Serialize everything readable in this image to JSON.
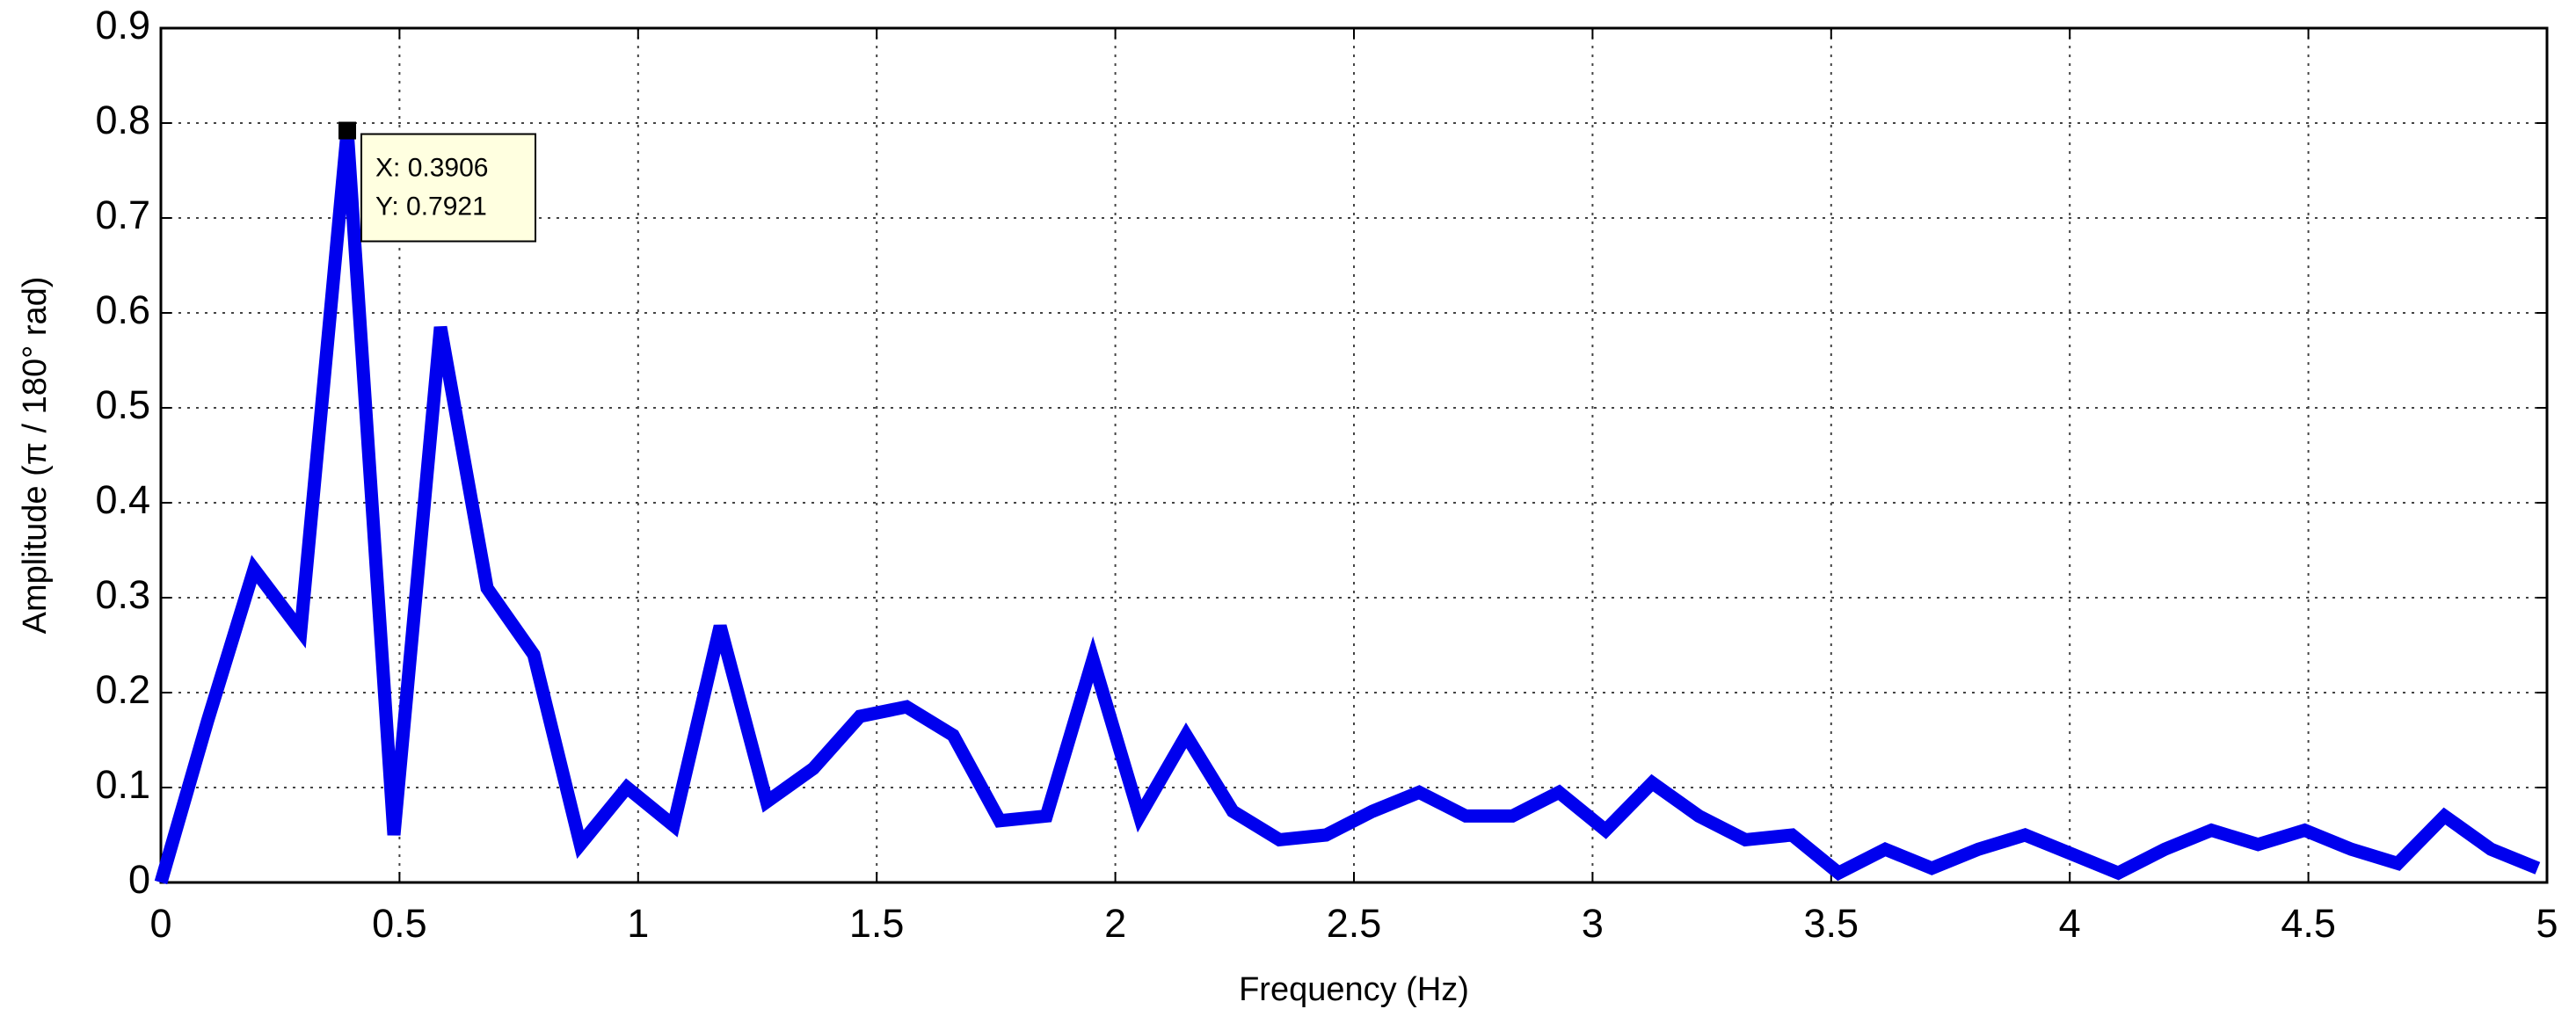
{
  "chart_data": {
    "type": "line",
    "xlabel": "Frequency (Hz)",
    "ylabel": "Amplitude (π / 180° rad)",
    "x": [
      0,
      0.0977,
      0.1953,
      0.293,
      0.3906,
      0.4883,
      0.5859,
      0.6836,
      0.7813,
      0.8789,
      0.9766,
      1.0742,
      1.1719,
      1.2695,
      1.3672,
      1.4648,
      1.5625,
      1.6602,
      1.7578,
      1.8555,
      1.9531,
      2.0508,
      2.1484,
      2.2461,
      2.3438,
      2.4414,
      2.5391,
      2.6367,
      2.7344,
      2.832,
      2.9297,
      3.0273,
      3.125,
      3.2227,
      3.3203,
      3.418,
      3.5156,
      3.6133,
      3.7109,
      3.8086,
      3.9063,
      4.0039,
      4.1016,
      4.1992,
      4.2969,
      4.3945,
      4.4922,
      4.5898,
      4.6875,
      4.7852,
      4.8828,
      4.9805
    ],
    "series": [
      {
        "color": "#0000ee",
        "values": [
          0,
          0.17,
          0.33,
          0.265,
          0.7921,
          0.05,
          0.585,
          0.31,
          0.24,
          0.04,
          0.1,
          0.06,
          0.27,
          0.085,
          0.12,
          0.175,
          0.185,
          0.155,
          0.065,
          0.07,
          0.235,
          0.07,
          0.155,
          0.075,
          0.045,
          0.05,
          0.075,
          0.095,
          0.07,
          0.07,
          0.095,
          0.055,
          0.105,
          0.07,
          0.045,
          0.05,
          0.01,
          0.035,
          0.015,
          0.035,
          0.05,
          0.03,
          0.01,
          0.035,
          0.055,
          0.04,
          0.055,
          0.035,
          0.02,
          0.07,
          0.035,
          0.015
        ]
      }
    ],
    "annotations": [
      "X: 0.3906",
      "Y: 0.7921"
    ],
    "xlim": [
      0,
      5
    ],
    "ylim": [
      0,
      0.9
    ],
    "xticks": [
      0,
      0.5,
      1,
      1.5,
      2,
      2.5,
      3,
      3.5,
      4,
      4.5,
      5
    ],
    "yticks": [
      0,
      0.1,
      0.2,
      0.3,
      0.4,
      0.5,
      0.6,
      0.7,
      0.8,
      0.9
    ],
    "grid": true
  }
}
